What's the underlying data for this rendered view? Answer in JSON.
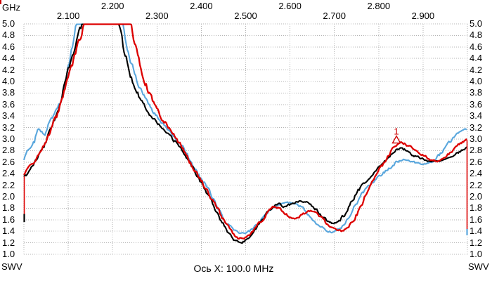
{
  "units": {
    "x_unit": "GHz",
    "y_unit_left": "SWV",
    "y_unit_right": "SWV"
  },
  "footer": {
    "x_axis_info": "Ось X: 100.0 MHz"
  },
  "colors": {
    "background": "#ffffff",
    "grid": "#b4b4b4",
    "text": "#000000",
    "trace_black": "#000000",
    "trace_red": "#dd0000",
    "trace_blue": "#5aa7dd",
    "marker": "#cc0000"
  },
  "axes": {
    "x": {
      "min": 2.0,
      "max": 3.0,
      "step": 0.1,
      "ticks": [
        {
          "label": "2.100",
          "freq": 2.1,
          "row": 2
        },
        {
          "label": "2.200",
          "freq": 2.2,
          "row": 1
        },
        {
          "label": "2.300",
          "freq": 2.3,
          "row": 2
        },
        {
          "label": "2.400",
          "freq": 2.4,
          "row": 1
        },
        {
          "label": "2.500",
          "freq": 2.5,
          "row": 2
        },
        {
          "label": "2.600",
          "freq": 2.6,
          "row": 1
        },
        {
          "label": "2.700",
          "freq": 2.7,
          "row": 2
        },
        {
          "label": "2.800",
          "freq": 2.8,
          "row": 1
        },
        {
          "label": "2.900",
          "freq": 2.9,
          "row": 2
        }
      ]
    },
    "y": {
      "min": 1.0,
      "max": 5.0,
      "step": 0.2,
      "ticks": [
        {
          "label": "5.0",
          "value": 5.0
        },
        {
          "label": "4.8",
          "value": 4.8
        },
        {
          "label": "4.6",
          "value": 4.6
        },
        {
          "label": "4.4",
          "value": 4.4
        },
        {
          "label": "4.2",
          "value": 4.2
        },
        {
          "label": "4.0",
          "value": 4.0
        },
        {
          "label": "3.8",
          "value": 3.8
        },
        {
          "label": "3.6",
          "value": 3.6
        },
        {
          "label": "3.4",
          "value": 3.4
        },
        {
          "label": "3.2",
          "value": 3.2
        },
        {
          "label": "3.0",
          "value": 3.0
        },
        {
          "label": "2.8",
          "value": 2.8
        },
        {
          "label": "2.6",
          "value": 2.6
        },
        {
          "label": "2.4",
          "value": 2.4
        },
        {
          "label": "2.2",
          "value": 2.2
        },
        {
          "label": "2.0",
          "value": 2.0
        },
        {
          "label": "1.8",
          "value": 1.8
        },
        {
          "label": "1.6",
          "value": 1.6
        },
        {
          "label": "1.4",
          "value": 1.4
        },
        {
          "label": "1.2",
          "value": 1.2
        },
        {
          "label": "1.0",
          "value": 1.0
        }
      ]
    }
  },
  "chart_data": {
    "type": "line",
    "title": "",
    "xlabel": "GHz",
    "ylabel": "SWV",
    "x_range": [
      2.0,
      3.0
    ],
    "y_range": [
      1.0,
      5.0
    ],
    "x_division": "100.0 MHz",
    "grid": true,
    "clip_max": 5.0,
    "series": [
      {
        "name": "trace-blue",
        "color": "#5aa7dd",
        "stroke": 2.1,
        "seed": 29,
        "points": [
          [
            2.0,
            2.62
          ],
          [
            2.008,
            2.78
          ],
          [
            2.016,
            2.84
          ],
          [
            2.025,
            2.95
          ],
          [
            2.032,
            3.22
          ],
          [
            2.04,
            3.12
          ],
          [
            2.048,
            3.08
          ],
          [
            2.056,
            3.25
          ],
          [
            2.064,
            3.35
          ],
          [
            2.074,
            3.5
          ],
          [
            2.084,
            3.7
          ],
          [
            2.094,
            4.0
          ],
          [
            2.104,
            4.38
          ],
          [
            2.114,
            4.78
          ],
          [
            2.124,
            5.3
          ],
          [
            2.218,
            5.3
          ],
          [
            2.23,
            4.7
          ],
          [
            2.242,
            4.32
          ],
          [
            2.256,
            4.0
          ],
          [
            2.27,
            3.76
          ],
          [
            2.286,
            3.54
          ],
          [
            2.302,
            3.36
          ],
          [
            2.318,
            3.22
          ],
          [
            2.334,
            3.08
          ],
          [
            2.35,
            2.94
          ],
          [
            2.364,
            2.8
          ],
          [
            2.378,
            2.6
          ],
          [
            2.392,
            2.42
          ],
          [
            2.406,
            2.25
          ],
          [
            2.42,
            2.08
          ],
          [
            2.434,
            1.88
          ],
          [
            2.448,
            1.66
          ],
          [
            2.462,
            1.5
          ],
          [
            2.476,
            1.41
          ],
          [
            2.49,
            1.37
          ],
          [
            2.505,
            1.38
          ],
          [
            2.52,
            1.47
          ],
          [
            2.54,
            1.66
          ],
          [
            2.56,
            1.8
          ],
          [
            2.58,
            1.87
          ],
          [
            2.6,
            1.9
          ],
          [
            2.616,
            1.87
          ],
          [
            2.632,
            1.77
          ],
          [
            2.648,
            1.64
          ],
          [
            2.664,
            1.51
          ],
          [
            2.68,
            1.42
          ],
          [
            2.696,
            1.38
          ],
          [
            2.712,
            1.44
          ],
          [
            2.728,
            1.58
          ],
          [
            2.744,
            1.8
          ],
          [
            2.76,
            2.02
          ],
          [
            2.776,
            2.16
          ],
          [
            2.792,
            2.28
          ],
          [
            2.808,
            2.4
          ],
          [
            2.824,
            2.5
          ],
          [
            2.84,
            2.6
          ],
          [
            2.856,
            2.65
          ],
          [
            2.872,
            2.62
          ],
          [
            2.888,
            2.58
          ],
          [
            2.904,
            2.57
          ],
          [
            2.92,
            2.61
          ],
          [
            2.936,
            2.72
          ],
          [
            2.952,
            2.88
          ],
          [
            2.968,
            3.02
          ],
          [
            2.984,
            3.12
          ],
          [
            2.996,
            3.17
          ],
          [
            3.0,
            3.15
          ]
        ]
      },
      {
        "name": "trace-black",
        "color": "#000000",
        "stroke": 2.1,
        "seed": 7,
        "points": [
          [
            2.0,
            2.33
          ],
          [
            2.015,
            2.48
          ],
          [
            2.03,
            2.66
          ],
          [
            2.045,
            2.88
          ],
          [
            2.06,
            3.15
          ],
          [
            2.075,
            3.48
          ],
          [
            2.09,
            3.88
          ],
          [
            2.105,
            4.32
          ],
          [
            2.12,
            4.75
          ],
          [
            2.132,
            5.02
          ],
          [
            2.14,
            5.4
          ],
          [
            2.205,
            5.4
          ],
          [
            2.214,
            5.0
          ],
          [
            2.224,
            4.6
          ],
          [
            2.238,
            4.18
          ],
          [
            2.252,
            3.88
          ],
          [
            2.268,
            3.62
          ],
          [
            2.284,
            3.44
          ],
          [
            2.3,
            3.3
          ],
          [
            2.316,
            3.14
          ],
          [
            2.332,
            3.02
          ],
          [
            2.348,
            2.9
          ],
          [
            2.36,
            2.78
          ],
          [
            2.375,
            2.58
          ],
          [
            2.39,
            2.38
          ],
          [
            2.405,
            2.18
          ],
          [
            2.42,
            1.98
          ],
          [
            2.435,
            1.75
          ],
          [
            2.45,
            1.52
          ],
          [
            2.465,
            1.33
          ],
          [
            2.478,
            1.23
          ],
          [
            2.492,
            1.21
          ],
          [
            2.506,
            1.28
          ],
          [
            2.522,
            1.44
          ],
          [
            2.542,
            1.66
          ],
          [
            2.56,
            1.82
          ],
          [
            2.575,
            1.9
          ],
          [
            2.588,
            1.82
          ],
          [
            2.602,
            1.87
          ],
          [
            2.62,
            1.92
          ],
          [
            2.64,
            1.9
          ],
          [
            2.658,
            1.78
          ],
          [
            2.676,
            1.63
          ],
          [
            2.694,
            1.53
          ],
          [
            2.71,
            1.56
          ],
          [
            2.726,
            1.72
          ],
          [
            2.742,
            1.95
          ],
          [
            2.758,
            2.15
          ],
          [
            2.774,
            2.3
          ],
          [
            2.79,
            2.42
          ],
          [
            2.806,
            2.56
          ],
          [
            2.822,
            2.68
          ],
          [
            2.838,
            2.8
          ],
          [
            2.85,
            2.86
          ],
          [
            2.862,
            2.8
          ],
          [
            2.876,
            2.73
          ],
          [
            2.89,
            2.68
          ],
          [
            2.905,
            2.63
          ],
          [
            2.92,
            2.61
          ],
          [
            2.935,
            2.62
          ],
          [
            2.95,
            2.66
          ],
          [
            2.965,
            2.71
          ],
          [
            2.98,
            2.77
          ],
          [
            3.0,
            2.86
          ]
        ]
      },
      {
        "name": "trace-red",
        "color": "#dd0000",
        "stroke": 2.3,
        "seed": 13,
        "points": [
          [
            2.0,
            2.38
          ],
          [
            2.015,
            2.52
          ],
          [
            2.03,
            2.68
          ],
          [
            2.045,
            2.88
          ],
          [
            2.06,
            3.12
          ],
          [
            2.075,
            3.42
          ],
          [
            2.09,
            3.78
          ],
          [
            2.105,
            4.18
          ],
          [
            2.12,
            4.58
          ],
          [
            2.135,
            4.98
          ],
          [
            2.145,
            5.4
          ],
          [
            2.233,
            5.4
          ],
          [
            2.243,
            4.95
          ],
          [
            2.254,
            4.52
          ],
          [
            2.268,
            4.12
          ],
          [
            2.282,
            3.8
          ],
          [
            2.296,
            3.56
          ],
          [
            2.312,
            3.36
          ],
          [
            2.328,
            3.18
          ],
          [
            2.344,
            3.02
          ],
          [
            2.358,
            2.85
          ],
          [
            2.372,
            2.64
          ],
          [
            2.388,
            2.42
          ],
          [
            2.404,
            2.22
          ],
          [
            2.42,
            2.02
          ],
          [
            2.436,
            1.8
          ],
          [
            2.452,
            1.58
          ],
          [
            2.468,
            1.4
          ],
          [
            2.482,
            1.29
          ],
          [
            2.496,
            1.27
          ],
          [
            2.51,
            1.33
          ],
          [
            2.526,
            1.49
          ],
          [
            2.546,
            1.7
          ],
          [
            2.566,
            1.84
          ],
          [
            2.582,
            1.77
          ],
          [
            2.598,
            1.64
          ],
          [
            2.614,
            1.62
          ],
          [
            2.632,
            1.71
          ],
          [
            2.648,
            1.76
          ],
          [
            2.664,
            1.7
          ],
          [
            2.682,
            1.54
          ],
          [
            2.7,
            1.43
          ],
          [
            2.716,
            1.4
          ],
          [
            2.732,
            1.47
          ],
          [
            2.748,
            1.66
          ],
          [
            2.764,
            1.92
          ],
          [
            2.78,
            2.16
          ],
          [
            2.796,
            2.4
          ],
          [
            2.812,
            2.6
          ],
          [
            2.828,
            2.78
          ],
          [
            2.84,
            2.9
          ],
          [
            2.85,
            2.95
          ],
          [
            2.862,
            2.9
          ],
          [
            2.876,
            2.84
          ],
          [
            2.89,
            2.77
          ],
          [
            2.904,
            2.7
          ],
          [
            2.918,
            2.64
          ],
          [
            2.932,
            2.62
          ],
          [
            2.946,
            2.66
          ],
          [
            2.96,
            2.76
          ],
          [
            2.974,
            2.86
          ],
          [
            2.988,
            2.95
          ],
          [
            3.0,
            3.0
          ]
        ]
      }
    ],
    "marker": {
      "label": "1",
      "freq": 2.84,
      "swv": 2.92,
      "series": "trace-red"
    },
    "edge_marks": {
      "left": {
        "color": "#dd0000",
        "from_swv": 2.36,
        "to_swv": 1.6
      },
      "left_tip": {
        "color": "#000000",
        "from_swv": 1.7,
        "to_swv": 1.56
      },
      "right": {
        "color": "#dd0000",
        "from_swv": 2.98,
        "to_swv": 1.38
      },
      "right_tip": {
        "color": "#5aa7dd",
        "from_swv": 1.44,
        "to_swv": 1.33
      }
    }
  }
}
